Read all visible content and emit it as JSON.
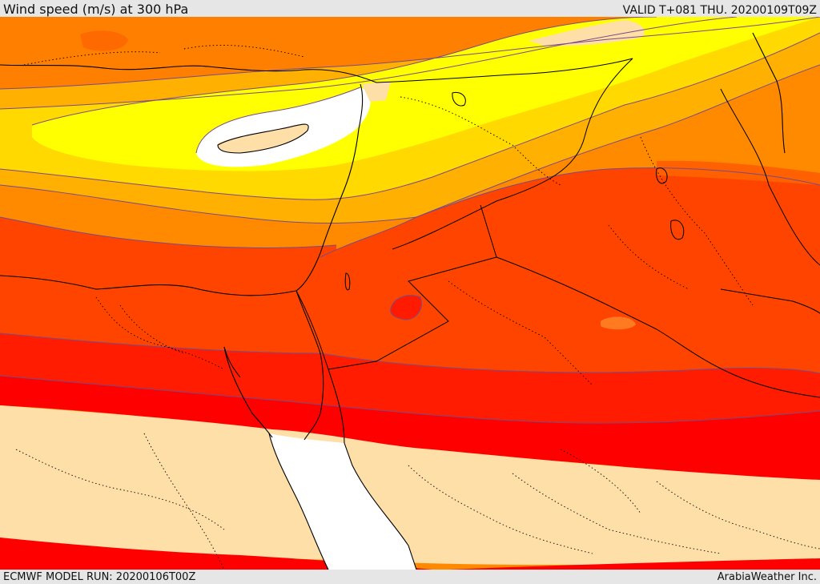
{
  "header": {
    "title": "Wind speed (m/s) at 300 hPa",
    "valid": "VALID T+081 THU. 20200109T09Z"
  },
  "footer": {
    "model_run": "ECMWF MODEL RUN: 20200106T00Z",
    "credit": "ArabiaWeather Inc."
  },
  "colors": {
    "band_lt20": "#ffdfa8",
    "band_20_30": "#ff7f00",
    "band_30_40": "#ff9d00",
    "band_40_50": "#ffb400",
    "band_50_60": "#ffd900",
    "band_60_70": "#ffff00",
    "band_70_80": "#ffffff",
    "band_red": "#ff0000",
    "band_darkred": "#ff1a00",
    "band_orangered": "#ff4000",
    "band_redorange": "#ff6000",
    "sea_white": "#ffffff",
    "contour": "#7a4a88",
    "border": "#000000"
  },
  "map": {
    "parameter": "wind speed",
    "level": "300 hPa",
    "units": "m/s"
  }
}
